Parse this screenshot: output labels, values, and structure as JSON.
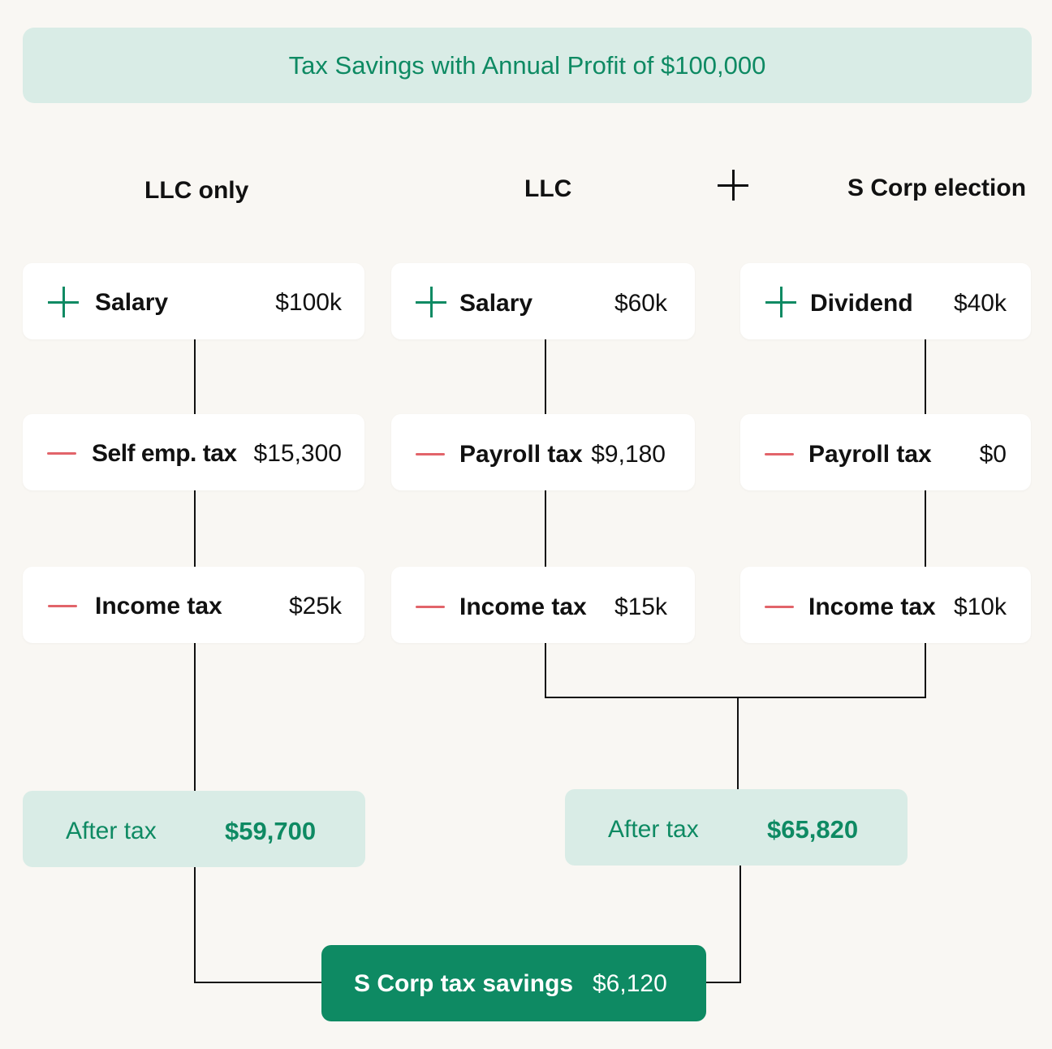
{
  "title": "Tax Savings with Annual Profit of $100,000",
  "columns": {
    "llc_only": "LLC only",
    "llc": "LLC",
    "s_corp": "S Corp election"
  },
  "llc_only": {
    "salary": {
      "sign": "plus",
      "label": "Salary",
      "value": "$100k"
    },
    "self_emp_tax": {
      "sign": "minus",
      "label": "Self emp. tax",
      "value": "$15,300"
    },
    "income_tax": {
      "sign": "minus",
      "label": "Income tax",
      "value": "$25k"
    },
    "after_tax": {
      "label": "After tax",
      "value": "$59,700"
    }
  },
  "llc": {
    "salary": {
      "sign": "plus",
      "label": "Salary",
      "value": "$60k"
    },
    "payroll_tax": {
      "sign": "minus",
      "label": "Payroll tax",
      "value": "$9,180"
    },
    "income_tax": {
      "sign": "minus",
      "label": "Income tax",
      "value": "$15k"
    }
  },
  "s_corp": {
    "dividend": {
      "sign": "plus",
      "label": "Dividend",
      "value": "$40k"
    },
    "payroll_tax": {
      "sign": "minus",
      "label": "Payroll tax",
      "value": "$0"
    },
    "income_tax": {
      "sign": "minus",
      "label": "Income tax",
      "value": "$10k"
    }
  },
  "combined_after_tax": {
    "label": "After tax",
    "value": "$65,820"
  },
  "savings": {
    "label": "S Corp tax savings",
    "value": "$6,120"
  },
  "colors": {
    "accent_green": "#0e8a63",
    "light_green": "#d9ece6",
    "minus_red": "#e2646a",
    "background": "#f9f7f3"
  }
}
